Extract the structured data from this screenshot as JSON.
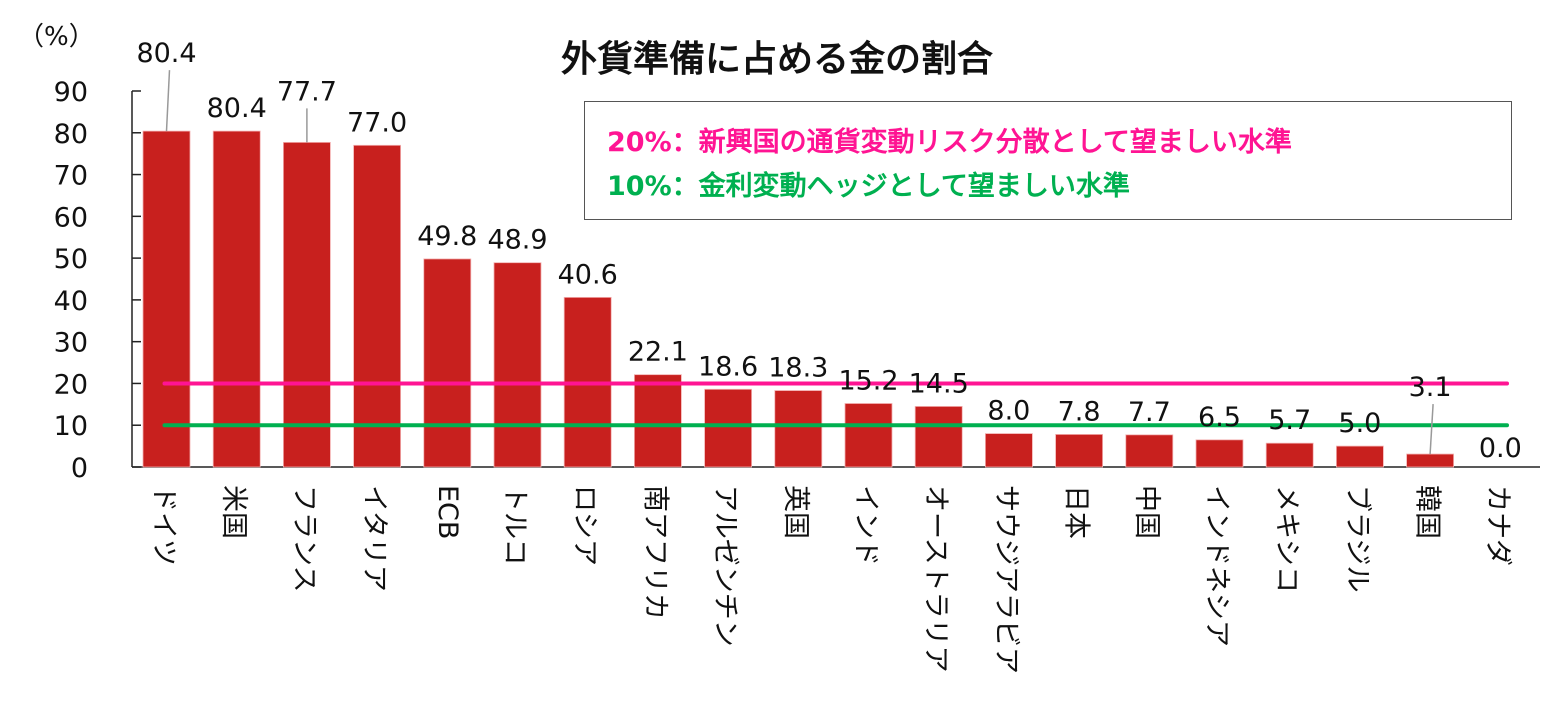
{
  "chart_data": {
    "type": "bar",
    "title": "外貨準備に占める金の割合",
    "ylabel": "（%）",
    "ylim": [
      0,
      90
    ],
    "yticks": [
      0,
      10,
      20,
      30,
      40,
      50,
      60,
      70,
      80,
      90
    ],
    "grid": false,
    "categories": [
      "ドイツ",
      "米国",
      "フランス",
      "イタリア",
      "ECB",
      "トルコ",
      "ロシア",
      "南アフリカ",
      "アルゼンチン",
      "英国",
      "インド",
      "オーストラリア",
      "サウジアラビア",
      "日本",
      "中国",
      "インドネシア",
      "メキシコ",
      "ブラジル",
      "韓国",
      "カナダ"
    ],
    "values": [
      80.4,
      80.4,
      77.7,
      77.0,
      49.8,
      48.9,
      40.6,
      22.1,
      18.6,
      18.3,
      15.2,
      14.5,
      8.0,
      7.8,
      7.7,
      6.5,
      5.7,
      5.0,
      3.1,
      0.0
    ],
    "data_labels": [
      "80.4",
      "80.4",
      "77.7",
      "77.0",
      "49.8",
      "48.9",
      "40.6",
      "22.1",
      "18.6",
      "18.3",
      "15.2",
      "14.5",
      "8.0",
      "7.8",
      "7.7",
      "6.5",
      "5.7",
      "5.0",
      "3.1",
      "0.0"
    ],
    "bar_color": "#C8201E",
    "reference_lines": [
      {
        "value": 20,
        "label": "20%：新興国の通貨変動リスク分散として望ましい水準",
        "color": "#FF1493"
      },
      {
        "value": 10,
        "label": "10%：金利変動ヘッジとして望ましい水準",
        "color": "#00B050"
      }
    ],
    "legend_placement": "top-right"
  }
}
